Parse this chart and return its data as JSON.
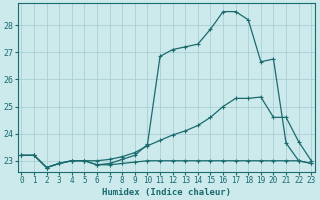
{
  "xlabel": "Humidex (Indice chaleur)",
  "bg_color": "#cce9ec",
  "grid_color": "#aacfd3",
  "line_color": "#1a6b6e",
  "x_min": 0,
  "x_max": 23,
  "y_min": 22.6,
  "y_max": 28.8,
  "yticks": [
    23,
    24,
    25,
    26,
    27,
    28
  ],
  "line1_x": [
    0,
    1,
    2,
    3,
    4,
    5,
    6,
    7,
    8,
    9,
    10,
    11,
    12,
    13,
    14,
    15,
    16,
    17,
    18,
    19,
    20,
    21,
    22,
    23
  ],
  "line1_y": [
    23.2,
    23.2,
    22.75,
    22.9,
    23.0,
    23.0,
    22.85,
    22.85,
    22.9,
    22.95,
    23.0,
    23.0,
    23.0,
    23.0,
    23.0,
    23.0,
    23.0,
    23.0,
    23.0,
    23.0,
    23.0,
    23.0,
    23.0,
    22.9
  ],
  "line2_x": [
    0,
    1,
    2,
    3,
    4,
    5,
    6,
    7,
    8,
    9,
    10,
    11,
    12,
    13,
    14,
    15,
    16,
    17,
    18,
    19,
    20,
    21,
    22,
    23
  ],
  "line2_y": [
    23.2,
    23.2,
    22.75,
    22.9,
    23.0,
    23.0,
    23.0,
    23.05,
    23.15,
    23.3,
    23.55,
    23.75,
    23.95,
    24.1,
    24.3,
    24.6,
    25.0,
    25.3,
    25.3,
    25.35,
    24.6,
    24.6,
    23.7,
    23.0
  ],
  "line3_x": [
    0,
    1,
    2,
    3,
    4,
    5,
    6,
    7,
    8,
    9,
    10,
    11,
    12,
    13,
    14,
    15,
    16,
    17,
    18,
    19,
    20,
    21,
    22,
    23
  ],
  "line3_y": [
    23.2,
    23.2,
    22.75,
    22.9,
    23.0,
    23.0,
    22.85,
    22.9,
    23.05,
    23.2,
    23.6,
    26.85,
    27.1,
    27.2,
    27.3,
    27.85,
    28.5,
    28.5,
    28.2,
    26.65,
    26.75,
    23.65,
    23.0,
    22.9
  ]
}
